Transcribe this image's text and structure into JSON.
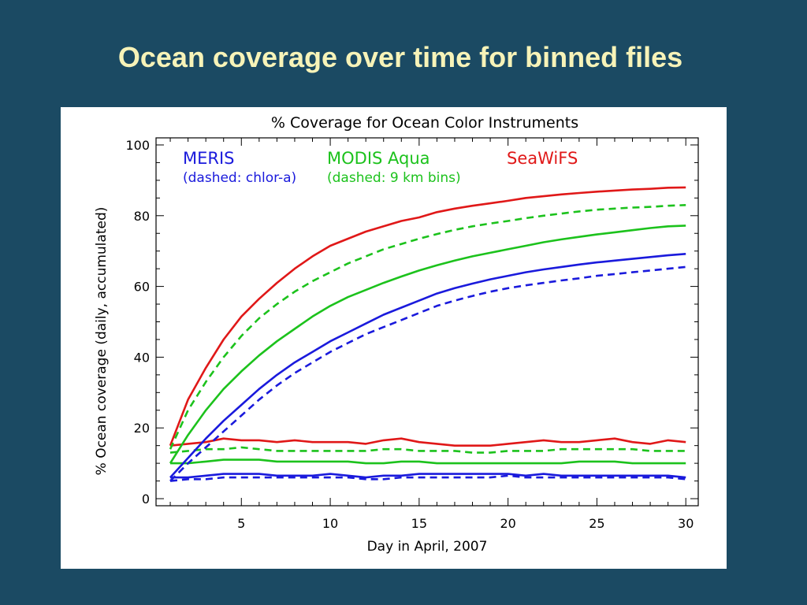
{
  "slide": {
    "title": "Ocean coverage over time for binned files"
  },
  "chart_data": {
    "type": "line",
    "title": "% Coverage for Ocean Color Instruments",
    "xlabel": "Day in April, 2007",
    "ylabel": "% Ocean coverage (daily, accumulated)",
    "xlim": [
      0.2,
      30.7
    ],
    "ylim": [
      -2,
      102
    ],
    "xticks": [
      5,
      10,
      15,
      20,
      25,
      30
    ],
    "yticks": [
      0,
      20,
      40,
      60,
      80,
      100
    ],
    "grid": false,
    "legend": [
      {
        "name": "MERIS",
        "note": "(dashed: chlor-a)",
        "color": "#1a1adc"
      },
      {
        "name": "MODIS Aqua",
        "note": "(dashed: 9 km bins)",
        "color": "#1cc21c"
      },
      {
        "name": "SeaWiFS",
        "note": "",
        "color": "#e01818"
      }
    ],
    "x": [
      1,
      2,
      3,
      4,
      5,
      6,
      7,
      8,
      9,
      10,
      11,
      12,
      13,
      14,
      15,
      16,
      17,
      18,
      19,
      20,
      21,
      22,
      23,
      24,
      25,
      26,
      27,
      28,
      29,
      30
    ],
    "series": [
      {
        "group": "SeaWiFS",
        "kind": "accumulated",
        "style": "solid",
        "color": "#e01818",
        "values": [
          15,
          28,
          37,
          45,
          51.5,
          56.5,
          61,
          65,
          68.5,
          71.5,
          73.5,
          75.5,
          77,
          78.5,
          79.5,
          81,
          82,
          82.8,
          83.5,
          84.2,
          85,
          85.5,
          86,
          86.4,
          86.8,
          87.1,
          87.4,
          87.6,
          87.9,
          88
        ]
      },
      {
        "group": "SeaWiFS",
        "kind": "daily",
        "style": "solid",
        "color": "#e01818",
        "values": [
          15,
          15.5,
          16,
          17,
          16.5,
          16.5,
          16,
          16.5,
          16,
          16,
          16,
          15.5,
          16.5,
          17,
          16,
          15.5,
          15,
          15,
          15,
          15.5,
          16,
          16.5,
          16,
          16,
          16.5,
          17,
          16,
          15.5,
          16.5,
          16
        ]
      },
      {
        "group": "MODIS Aqua",
        "kind": "accumulated",
        "style": "dashed",
        "color": "#1cc21c",
        "values": [
          14,
          25,
          33,
          40,
          46,
          51,
          55,
          58.5,
          61.5,
          64,
          66.5,
          68.5,
          70.5,
          72,
          73.5,
          74.8,
          76,
          77,
          77.8,
          78.5,
          79.3,
          80,
          80.6,
          81.2,
          81.7,
          82,
          82.3,
          82.5,
          82.8,
          83
        ]
      },
      {
        "group": "MODIS Aqua",
        "kind": "accumulated",
        "style": "solid",
        "color": "#1cc21c",
        "values": [
          10,
          18,
          25,
          31,
          36,
          40.5,
          44.5,
          48,
          51.5,
          54.5,
          57,
          59,
          61,
          62.8,
          64.5,
          66,
          67.3,
          68.5,
          69.5,
          70.5,
          71.5,
          72.5,
          73.3,
          74,
          74.7,
          75.3,
          75.9,
          76.5,
          77,
          77.2
        ]
      },
      {
        "group": "MODIS Aqua",
        "kind": "daily",
        "style": "dashed",
        "color": "#1cc21c",
        "values": [
          13,
          13.5,
          14,
          14,
          14.5,
          14,
          13.5,
          13.5,
          13.5,
          13.5,
          13.5,
          13.5,
          14,
          14,
          13.5,
          13.5,
          13.5,
          13,
          13,
          13.5,
          13.5,
          13.5,
          14,
          14,
          14,
          14,
          14,
          13.5,
          13.5,
          13.5
        ]
      },
      {
        "group": "MODIS Aqua",
        "kind": "daily",
        "style": "solid",
        "color": "#1cc21c",
        "values": [
          10,
          10,
          10.5,
          11,
          11,
          11,
          10.5,
          10.5,
          10.5,
          10.5,
          10.5,
          10,
          10,
          10.5,
          10.5,
          10,
          10,
          10,
          10,
          10,
          10,
          10,
          10,
          10.5,
          10.5,
          10.5,
          10,
          10,
          10,
          10
        ]
      },
      {
        "group": "MERIS",
        "kind": "accumulated",
        "style": "solid",
        "color": "#1a1adc",
        "values": [
          6,
          11.5,
          17,
          22,
          26.5,
          31,
          35,
          38.5,
          41.5,
          44.5,
          47,
          49.5,
          52,
          54,
          56,
          58,
          59.5,
          60.8,
          62,
          63,
          64,
          64.8,
          65.5,
          66.2,
          66.8,
          67.3,
          67.8,
          68.3,
          68.8,
          69.2
        ]
      },
      {
        "group": "MERIS",
        "kind": "accumulated",
        "style": "dashed",
        "color": "#1a1adc",
        "values": [
          5,
          10,
          14.5,
          19,
          23.5,
          28,
          32,
          35.5,
          38.5,
          41.5,
          44,
          46.5,
          48.5,
          50.5,
          52.5,
          54.5,
          56,
          57.3,
          58.5,
          59.5,
          60.3,
          61,
          61.7,
          62.3,
          63,
          63.5,
          64,
          64.5,
          65,
          65.5
        ]
      },
      {
        "group": "MERIS",
        "kind": "daily",
        "style": "solid",
        "color": "#1a1adc",
        "values": [
          6,
          6,
          6.5,
          7,
          7,
          7,
          6.5,
          6.5,
          6.5,
          7,
          6.5,
          6,
          6.5,
          6.5,
          7,
          7,
          7,
          7,
          7,
          7,
          6.5,
          7,
          6.5,
          6.5,
          6.5,
          6.5,
          6.5,
          6.5,
          6.5,
          6
        ]
      },
      {
        "group": "MERIS",
        "kind": "daily",
        "style": "dashed",
        "color": "#1a1adc",
        "values": [
          5,
          5.5,
          5.5,
          6,
          6,
          6,
          6,
          6,
          6,
          6,
          6,
          5.5,
          5.5,
          6,
          6,
          6,
          6,
          6,
          6,
          6.5,
          6,
          6,
          6,
          6,
          6,
          6,
          6,
          6,
          6,
          5.5
        ]
      }
    ]
  }
}
